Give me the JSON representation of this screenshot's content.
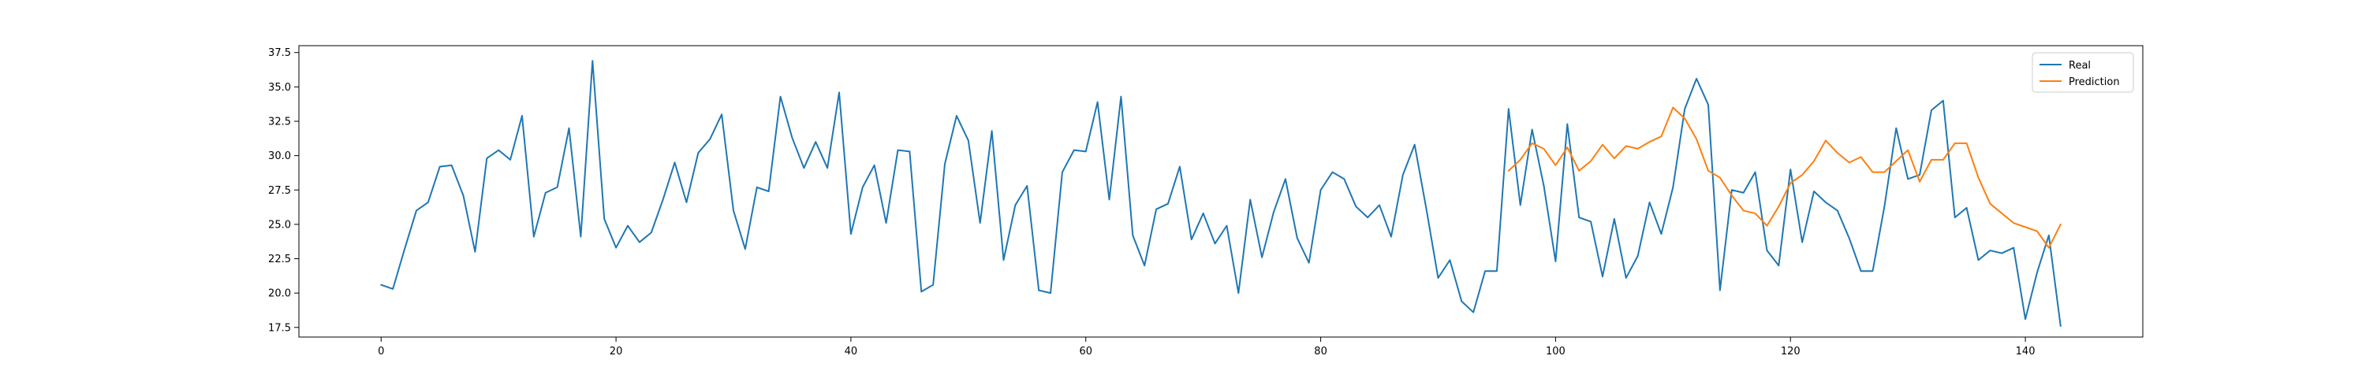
{
  "chart_data": {
    "type": "line",
    "title": "",
    "xlabel": "",
    "ylabel": "",
    "xlim": [
      -7,
      150
    ],
    "ylim": [
      16.8,
      38.0
    ],
    "x_ticks": [
      0,
      20,
      40,
      60,
      80,
      100,
      120,
      140
    ],
    "y_ticks": [
      17.5,
      20.0,
      22.5,
      25.0,
      27.5,
      30.0,
      32.5,
      35.0,
      37.5
    ],
    "x_tick_labels": [
      "0",
      "20",
      "40",
      "60",
      "80",
      "100",
      "120",
      "140"
    ],
    "y_tick_labels": [
      "17.5",
      "20.0",
      "22.5",
      "25.0",
      "27.5",
      "30.0",
      "32.5",
      "35.0",
      "37.5"
    ],
    "grid": false,
    "legend_position": "top-right",
    "series": [
      {
        "name": "Real",
        "color": "#1f77b4",
        "x_start": 0,
        "values": [
          20.6,
          20.3,
          23.2,
          26.0,
          26.6,
          29.2,
          29.3,
          27.1,
          23.0,
          29.8,
          30.4,
          29.7,
          32.9,
          24.1,
          27.3,
          27.7,
          32.0,
          24.1,
          36.9,
          25.4,
          23.3,
          24.9,
          23.7,
          24.4,
          26.8,
          29.5,
          26.6,
          30.2,
          31.2,
          33.0,
          26.0,
          23.2,
          27.7,
          27.4,
          34.3,
          31.3,
          29.1,
          31.0,
          29.1,
          34.6,
          24.3,
          27.7,
          29.3,
          25.1,
          30.4,
          30.3,
          20.1,
          20.6,
          29.4,
          32.9,
          31.1,
          25.1,
          31.8,
          22.4,
          26.4,
          27.8,
          20.2,
          20.0,
          28.8,
          30.4,
          30.3,
          33.9,
          26.8,
          34.3,
          24.2,
          22.0,
          26.1,
          26.5,
          29.2,
          23.9,
          25.8,
          23.6,
          24.9,
          20.0,
          26.8,
          22.6,
          25.9,
          28.3,
          24.0,
          22.2,
          27.5,
          28.8,
          28.3,
          26.3,
          25.5,
          26.4,
          24.1,
          28.6,
          30.8,
          26.1,
          21.1,
          22.4,
          19.4,
          18.6,
          21.6,
          21.6,
          33.4,
          26.4,
          31.9,
          27.8,
          22.3,
          32.3,
          25.5,
          25.2,
          21.2,
          25.4,
          21.1,
          22.7,
          26.6,
          24.3,
          27.7,
          33.4,
          35.6,
          33.7,
          20.2,
          27.5,
          27.3,
          28.8,
          23.1,
          22.0,
          29.0,
          23.7,
          27.4,
          26.6,
          26.0,
          24.0,
          21.6,
          21.6,
          26.3,
          32.0,
          28.3,
          28.6,
          33.3,
          34.0,
          25.5,
          26.2,
          22.4,
          23.1,
          22.9,
          23.3,
          18.1,
          21.5,
          24.2,
          17.6
        ]
      },
      {
        "name": "Prediction",
        "color": "#ff7f0e",
        "x_start": 96,
        "values": [
          28.9,
          29.7,
          30.9,
          30.5,
          29.3,
          30.6,
          28.9,
          29.6,
          30.8,
          29.8,
          30.7,
          30.5,
          31.0,
          31.4,
          33.5,
          32.7,
          31.2,
          28.9,
          28.4,
          27.1,
          26.0,
          25.8,
          24.9,
          26.3,
          28.0,
          28.6,
          29.6,
          31.1,
          30.2,
          29.5,
          29.9,
          28.8,
          28.8,
          29.6,
          30.4,
          28.1,
          29.7,
          29.7,
          30.9,
          30.9,
          28.4,
          26.5,
          25.8,
          25.1,
          24.8,
          24.5,
          23.3,
          25.0
        ]
      }
    ]
  }
}
